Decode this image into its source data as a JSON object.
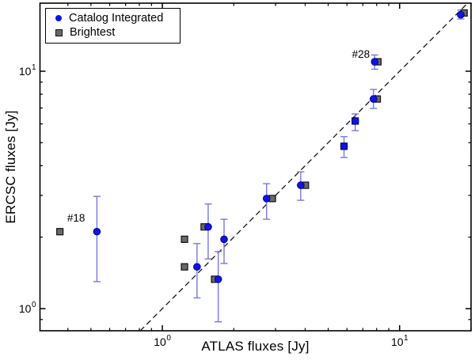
{
  "figure": {
    "background": "#ffffff",
    "axis_color": "#000000"
  },
  "chart_data": {
    "type": "scatter",
    "title": "",
    "xlabel": "ATLAS fluxes [Jy]",
    "ylabel": "ERCSC fluxes [Jy]",
    "xscale": "log",
    "yscale": "log",
    "xlim": [
      0.305,
      20
    ],
    "ylim": [
      0.807,
      19.35
    ],
    "x_major_ticks": [
      1,
      10
    ],
    "y_major_ticks": [
      1,
      10
    ],
    "grid": false,
    "legend_position": "top-left",
    "legend": [
      {
        "label": "Catalog Integrated",
        "marker": "circle",
        "color": "#1414e0"
      },
      {
        "label": "Brightest",
        "marker": "square",
        "color": "#696969"
      }
    ],
    "reference_line": {
      "equation": "y = x",
      "style": "dashed",
      "color": "#161616"
    },
    "error_bar_color": "#7979da",
    "series": [
      {
        "name": "Catalog Integrated",
        "marker": "circle",
        "fill": "#1414e0",
        "stroke": "#000090",
        "points": [
          {
            "x": 0.53,
            "y": 2.11,
            "err_lo": 1.3,
            "err_hi": 2.97
          },
          {
            "x": 1.56,
            "y": 2.21,
            "err_lo": 1.62,
            "err_hi": 2.76
          },
          {
            "x": 1.82,
            "y": 1.96,
            "err_lo": 1.55,
            "err_hi": 2.38
          },
          {
            "x": 1.4,
            "y": 1.5,
            "err_lo": 1.11,
            "err_hi": 1.88
          },
          {
            "x": 1.72,
            "y": 1.33,
            "err_lo": 0.88,
            "err_hi": 1.74
          },
          {
            "x": 2.75,
            "y": 2.91,
            "err_lo": 2.38,
            "err_hi": 3.36
          },
          {
            "x": 3.83,
            "y": 3.31,
            "err_lo": 2.86,
            "err_hi": 3.77
          },
          {
            "x": 5.83,
            "y": 4.83,
            "err_lo": 4.33,
            "err_hi": 5.3
          },
          {
            "x": 6.5,
            "y": 6.17,
            "err_lo": 5.62,
            "err_hi": 6.61
          },
          {
            "x": 7.76,
            "y": 7.64,
            "err_lo": 6.97,
            "err_hi": 8.38
          },
          {
            "x": 7.85,
            "y": 10.96,
            "err_lo": 10.2,
            "err_hi": 11.7
          },
          {
            "x": 18.1,
            "y": 17.3,
            "err_lo": 16.6,
            "err_hi": 18.1
          }
        ]
      },
      {
        "name": "Brightest",
        "marker": "square",
        "fill": "#696969",
        "stroke": "#111111",
        "points": [
          {
            "x": 0.37,
            "y": 2.11
          },
          {
            "x": 1.5,
            "y": 2.21
          },
          {
            "x": 1.24,
            "y": 1.96
          },
          {
            "x": 1.24,
            "y": 1.5
          },
          {
            "x": 1.66,
            "y": 1.33
          },
          {
            "x": 2.91,
            "y": 2.91
          },
          {
            "x": 4.01,
            "y": 3.31
          },
          {
            "x": 5.83,
            "y": 4.83
          },
          {
            "x": 6.5,
            "y": 6.17
          },
          {
            "x": 8.05,
            "y": 7.64
          },
          {
            "x": 8.1,
            "y": 10.96
          },
          {
            "x": 18.7,
            "y": 17.6
          }
        ]
      }
    ],
    "annotations": [
      {
        "text": "#18",
        "x": 0.433,
        "y": 2.4
      },
      {
        "text": "#28",
        "x": 6.87,
        "y": 11.75
      }
    ]
  }
}
